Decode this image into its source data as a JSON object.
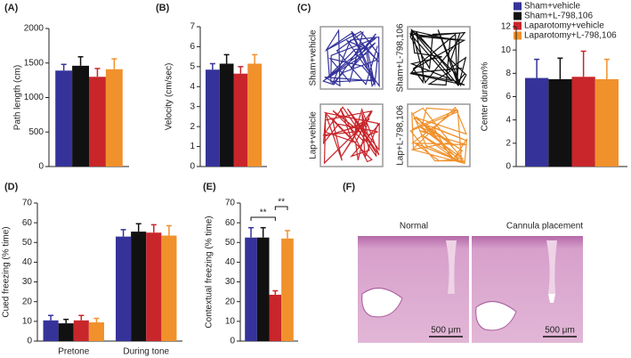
{
  "legend": [
    {
      "name": "Sham+vehicle",
      "color": "#35339a"
    },
    {
      "name": "Sham+L-798,106",
      "color": "#111111"
    },
    {
      "name": "Laparotomy+vehicle",
      "color": "#c8262b"
    },
    {
      "name": "Laparotomy+L-798,106",
      "color": "#f0912c"
    }
  ],
  "chart_data": [
    {
      "type": "bar",
      "panel": "(A)",
      "ylabel": "Path length (cm)",
      "ylim": [
        0,
        2000
      ],
      "yticks": [
        0,
        500,
        1000,
        1500,
        2000
      ],
      "series": [
        {
          "values": [
            1390
          ],
          "errors": [
            90
          ]
        },
        {
          "values": [
            1460
          ],
          "errors": [
            130
          ]
        },
        {
          "values": [
            1300
          ],
          "errors": [
            120
          ]
        },
        {
          "values": [
            1410
          ],
          "errors": [
            150
          ]
        }
      ]
    },
    {
      "type": "bar",
      "panel": "(B)",
      "ylabel": "Velocity (cm/sec)",
      "ylim": [
        0,
        7
      ],
      "yticks": [
        0,
        1,
        2,
        3,
        4,
        5,
        6,
        7
      ],
      "series": [
        {
          "values": [
            4.85
          ],
          "errors": [
            0.3
          ]
        },
        {
          "values": [
            5.15
          ],
          "errors": [
            0.45
          ]
        },
        {
          "values": [
            4.65
          ],
          "errors": [
            0.35
          ]
        },
        {
          "values": [
            5.15
          ],
          "errors": [
            0.45
          ]
        }
      ]
    },
    {
      "type": "bar",
      "ylabel": "Center duration%",
      "ylim": [
        0,
        12
      ],
      "yticks": [
        0,
        2,
        4,
        6,
        8,
        10,
        12
      ],
      "series": [
        {
          "values": [
            7.6
          ],
          "errors": [
            1.6
          ]
        },
        {
          "values": [
            7.5
          ],
          "errors": [
            1.8
          ]
        },
        {
          "values": [
            7.7
          ],
          "errors": [
            2.2
          ]
        },
        {
          "values": [
            7.5
          ],
          "errors": [
            1.7
          ]
        }
      ]
    },
    {
      "type": "bar",
      "panel": "(D)",
      "ylabel": "Cued freezing (% time)",
      "categories": [
        "Pretone",
        "During tone"
      ],
      "ylim": [
        0,
        70
      ],
      "yticks": [
        0,
        10,
        20,
        30,
        40,
        50,
        60,
        70
      ],
      "series": [
        {
          "values": [
            10.5,
            53
          ],
          "errors": [
            2.5,
            3.5
          ]
        },
        {
          "values": [
            9,
            55.5
          ],
          "errors": [
            2,
            4
          ]
        },
        {
          "values": [
            10.5,
            55
          ],
          "errors": [
            2.5,
            4
          ]
        },
        {
          "values": [
            9.5,
            53.5
          ],
          "errors": [
            2,
            5
          ]
        }
      ]
    },
    {
      "type": "bar",
      "panel": "(E)",
      "ylabel": "Contextual freezing (% time)",
      "ylim": [
        0,
        70
      ],
      "yticks": [
        0,
        10,
        20,
        30,
        40,
        50,
        60,
        70
      ],
      "annotations": [
        "**",
        "**"
      ],
      "series": [
        {
          "values": [
            52.5
          ],
          "errors": [
            5
          ]
        },
        {
          "values": [
            52.5
          ],
          "errors": [
            5
          ]
        },
        {
          "values": [
            23.5
          ],
          "errors": [
            2
          ]
        },
        {
          "values": [
            52
          ],
          "errors": [
            4
          ]
        }
      ]
    }
  ],
  "trajectories": {
    "panel": "(C)",
    "labels": [
      "Sham+vehicle",
      "Sham+L-798,106",
      "Lap+vehicle",
      "Lap+L-798,106"
    ]
  },
  "histology": {
    "panel": "(F)",
    "labels": [
      "Normal",
      "Cannula placement"
    ],
    "scale_bars": [
      "500 μm",
      "500 μm"
    ]
  }
}
